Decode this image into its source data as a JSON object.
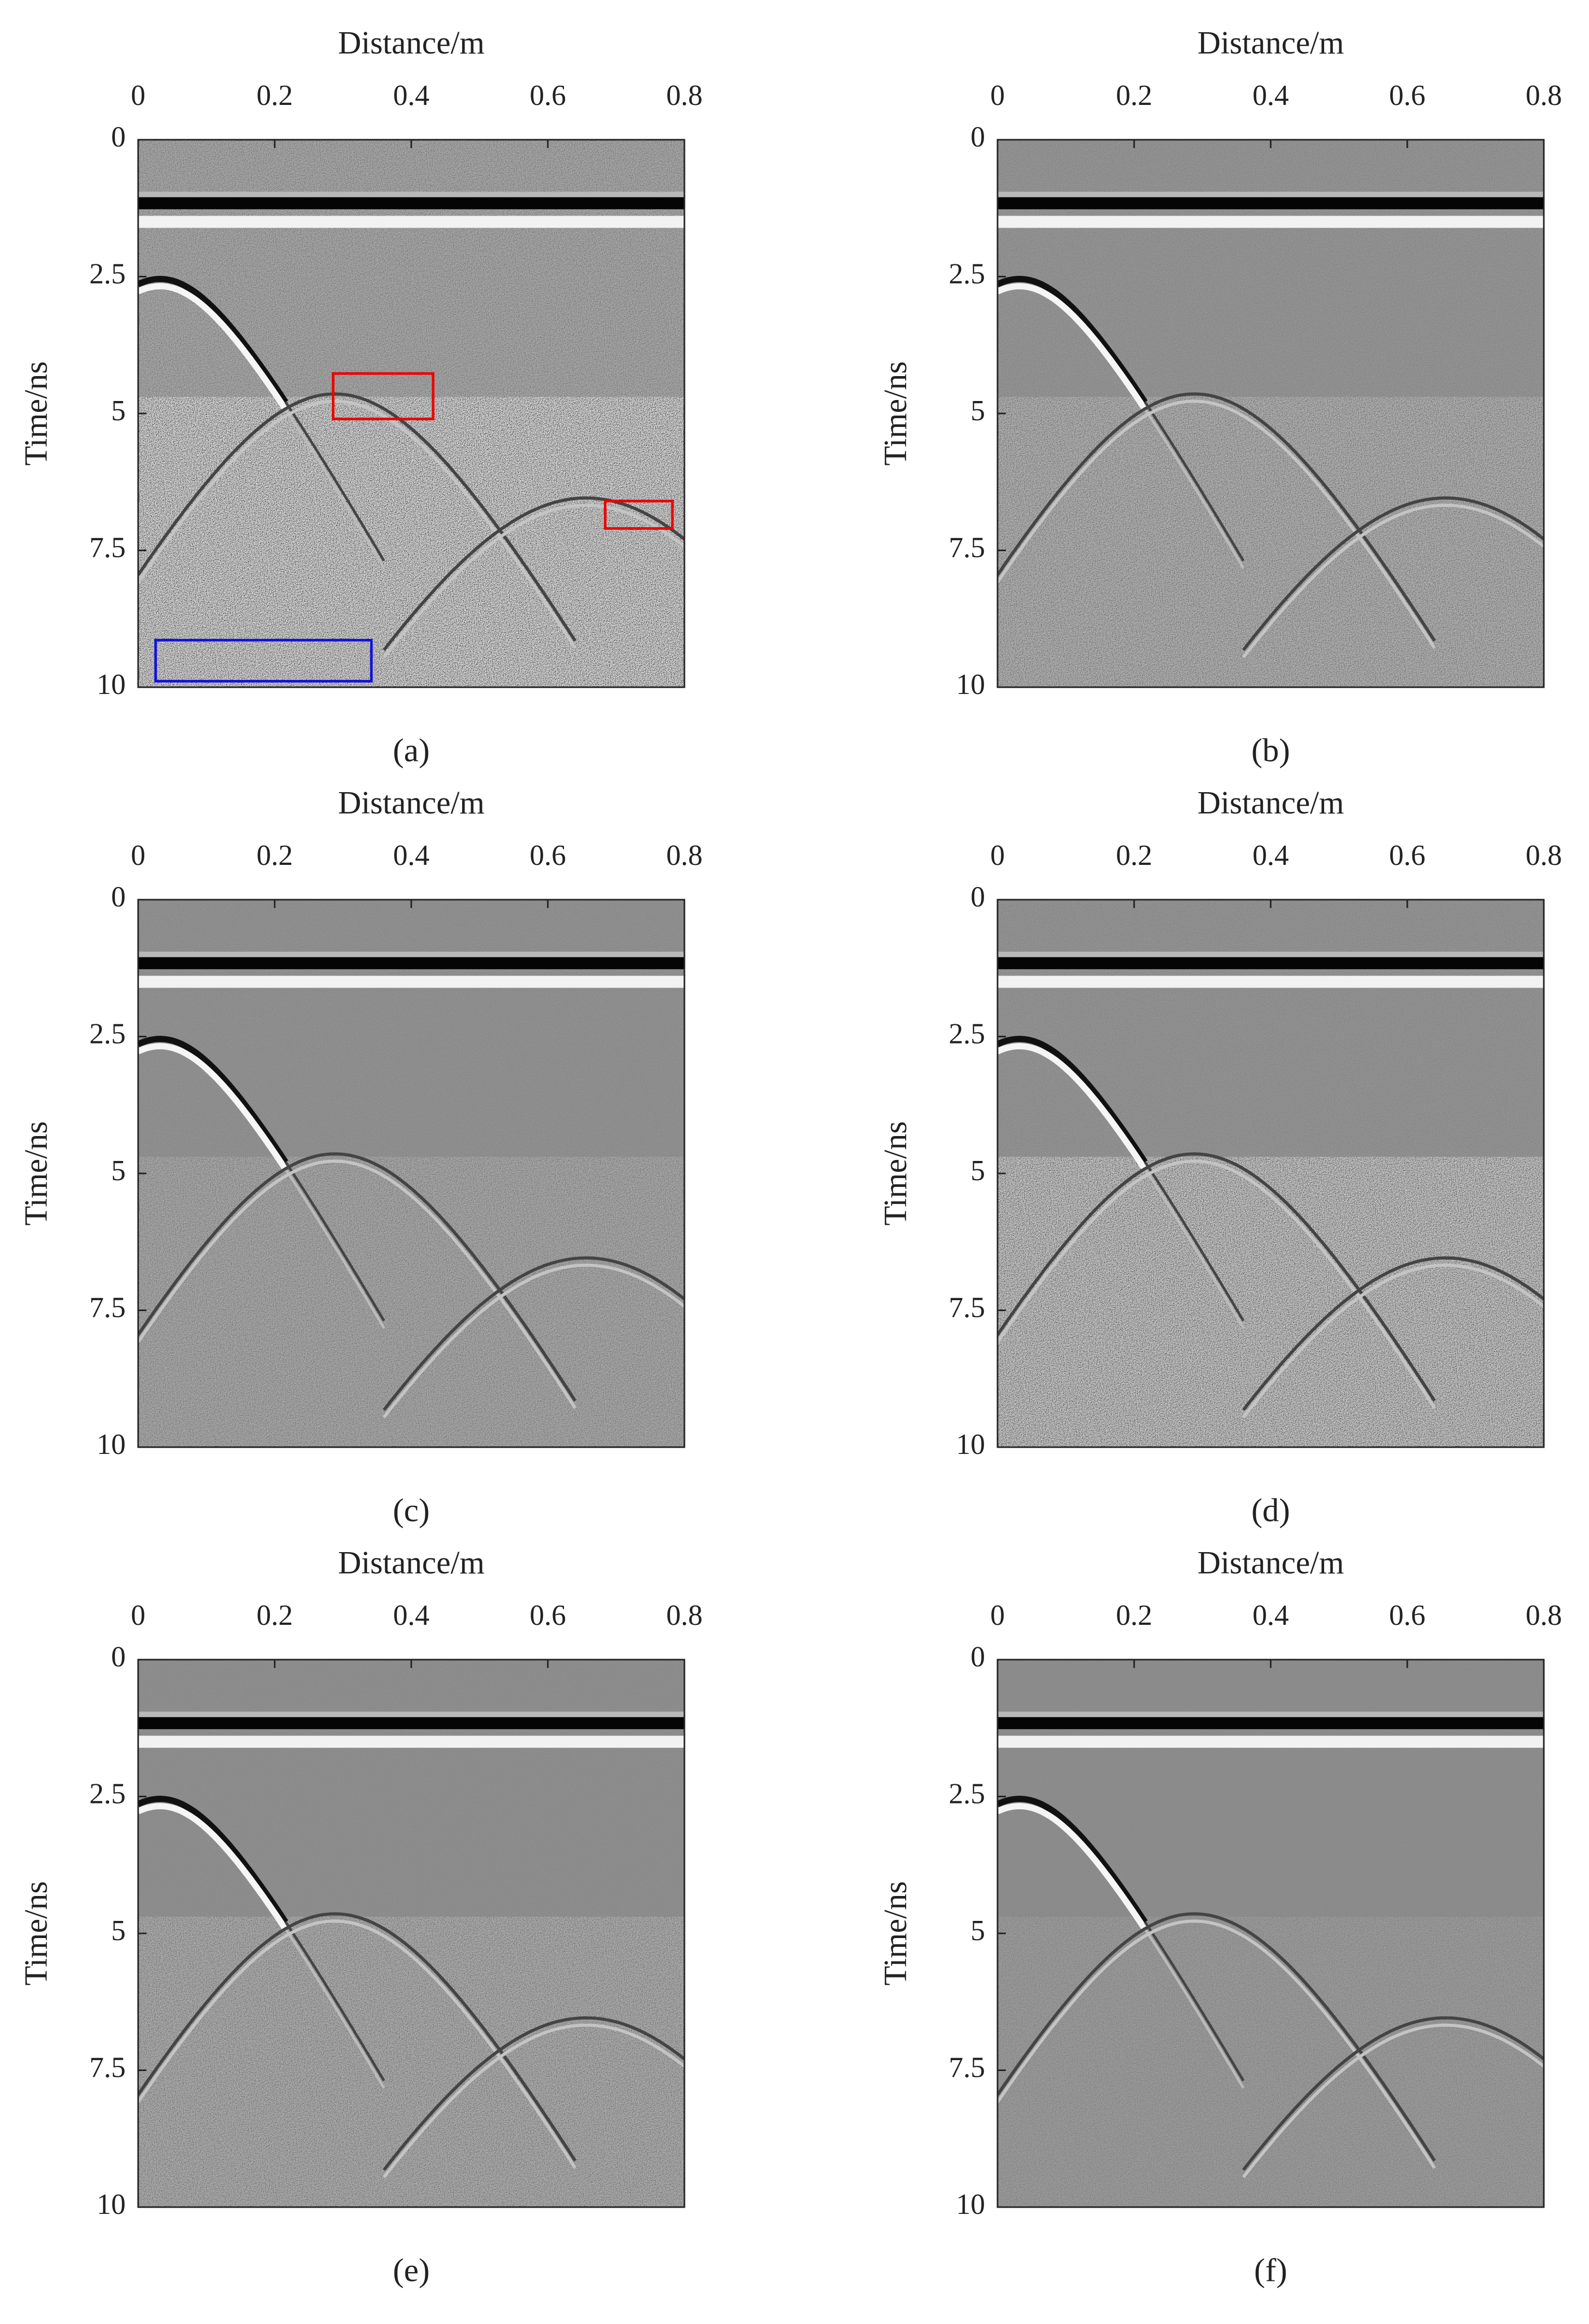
{
  "chart_data": [
    {
      "type": "image",
      "caption": "(a)",
      "x_label": "Distance/m",
      "y_label": "Time/ns",
      "xlim": [
        0,
        0.8
      ],
      "xticks": [
        0,
        0.2,
        0.4,
        0.6,
        0.8
      ],
      "ylim": [
        10,
        0
      ],
      "yticks": [
        0,
        2.5,
        5,
        7.5,
        10
      ]
    },
    {
      "type": "image",
      "caption": "(b)",
      "x_label": "Distance/m",
      "y_label": "Time/ns",
      "xlim": [
        0,
        0.8
      ],
      "xticks": [
        0,
        0.2,
        0.4,
        0.6,
        0.8
      ],
      "ylim": [
        10,
        0
      ],
      "yticks": [
        0,
        2.5,
        5,
        7.5,
        10
      ]
    },
    {
      "type": "image",
      "caption": "(c)",
      "x_label": "Distance/m",
      "y_label": "Time/ns",
      "xlim": [
        0,
        0.8
      ],
      "xticks": [
        0,
        0.2,
        0.4,
        0.6,
        0.8
      ],
      "ylim": [
        10,
        0
      ],
      "yticks": [
        0,
        2.5,
        5,
        7.5,
        10
      ]
    },
    {
      "type": "image",
      "caption": "(d)",
      "x_label": "Distance/m",
      "y_label": "Time/ns",
      "xlim": [
        0,
        0.8
      ],
      "xticks": [
        0,
        0.2,
        0.4,
        0.6,
        0.8
      ],
      "ylim": [
        10,
        0
      ],
      "yticks": [
        0,
        2.5,
        5,
        7.5,
        10
      ]
    },
    {
      "type": "image",
      "caption": "(e)",
      "x_label": "Distance/m",
      "y_label": "Time/ns",
      "xlim": [
        0,
        0.8
      ],
      "xticks": [
        0,
        0.2,
        0.4,
        0.6,
        0.8
      ],
      "ylim": [
        10,
        0
      ],
      "yticks": [
        0,
        2.5,
        5,
        7.5,
        10
      ]
    },
    {
      "type": "image",
      "caption": "(f)",
      "x_label": "Distance/m",
      "y_label": "Time/ns",
      "xlim": [
        0,
        0.8
      ],
      "xticks": [
        0,
        0.2,
        0.4,
        0.6,
        0.8
      ],
      "ylim": [
        10,
        0
      ],
      "yticks": [
        0,
        2.5,
        5,
        7.5,
        10
      ]
    }
  ]
}
